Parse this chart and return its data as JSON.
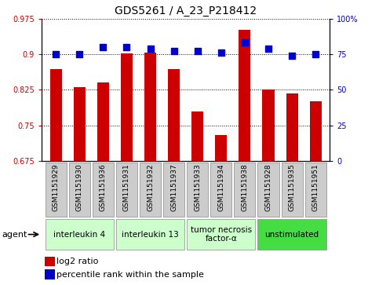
{
  "title": "GDS5261 / A_23_P218412",
  "samples": [
    "GSM1151929",
    "GSM1151930",
    "GSM1151936",
    "GSM1151931",
    "GSM1151932",
    "GSM1151937",
    "GSM1151933",
    "GSM1151934",
    "GSM1151938",
    "GSM1151928",
    "GSM1151935",
    "GSM1151951"
  ],
  "log2_ratio": [
    0.868,
    0.83,
    0.84,
    0.902,
    0.903,
    0.868,
    0.78,
    0.73,
    0.952,
    0.825,
    0.818,
    0.8
  ],
  "percentile": [
    75,
    75,
    80,
    80,
    79,
    77,
    77,
    76,
    83,
    79,
    74,
    75
  ],
  "ylim_left": [
    0.675,
    0.975
  ],
  "ylim_right": [
    0,
    100
  ],
  "yticks_left": [
    0.675,
    0.75,
    0.825,
    0.9,
    0.975
  ],
  "yticks_right": [
    0,
    25,
    50,
    75,
    100
  ],
  "ytick_labels_left": [
    "0.675",
    "0.75",
    "0.825",
    "0.9",
    "0.975"
  ],
  "ytick_labels_right": [
    "0",
    "25",
    "50",
    "75",
    "100%"
  ],
  "bar_color": "#CC0000",
  "dot_color": "#0000CC",
  "agent_label": "agent",
  "agents": [
    {
      "name": "interleukin 4",
      "indices": [
        0,
        1,
        2
      ],
      "color": "#CCFFCC"
    },
    {
      "name": "interleukin 13",
      "indices": [
        3,
        4,
        5
      ],
      "color": "#CCFFCC"
    },
    {
      "name": "tumor necrosis\nfactor-α",
      "indices": [
        6,
        7,
        8
      ],
      "color": "#CCFFCC"
    },
    {
      "name": "unstimulated",
      "indices": [
        9,
        10,
        11
      ],
      "color": "#44DD44"
    }
  ],
  "legend_log2": "log2 ratio",
  "legend_pct": "percentile rank within the sample",
  "grid_color": "black",
  "left_axis_color": "#CC0000",
  "right_axis_color": "#0000CC",
  "bar_width": 0.5,
  "dot_size": 40,
  "sample_box_color": "#CCCCCC",
  "border_color": "#888888"
}
